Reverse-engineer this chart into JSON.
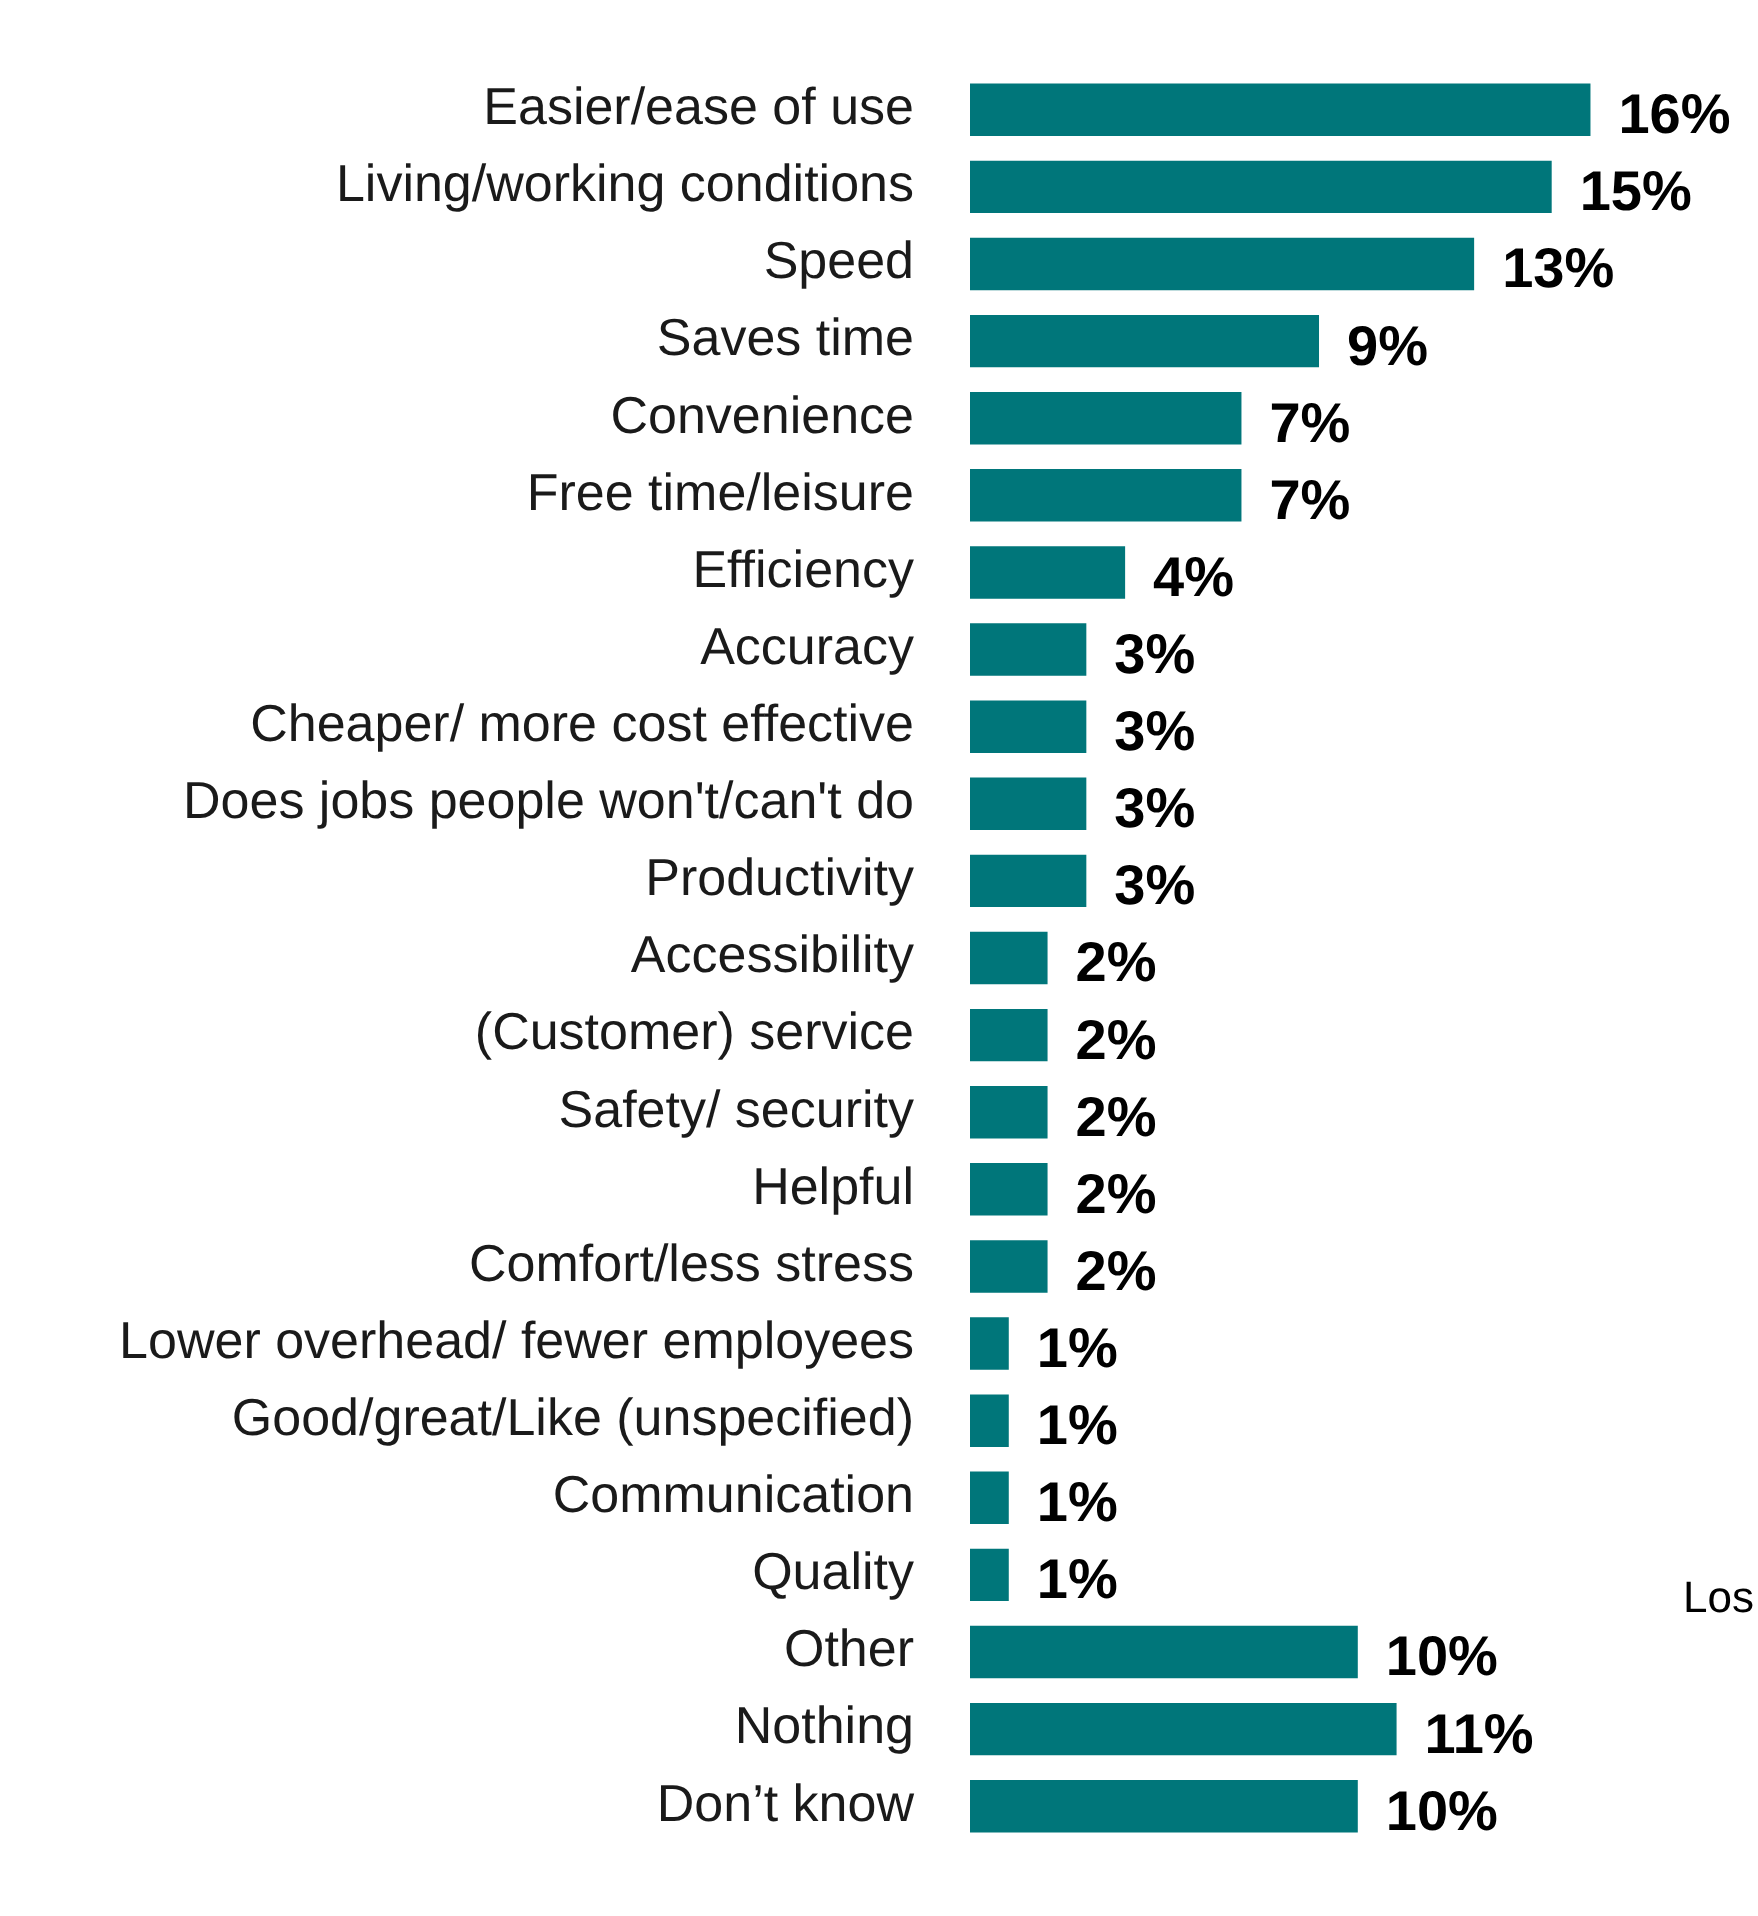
{
  "chart_data": {
    "type": "bar",
    "orientation": "horizontal",
    "categories": [
      "Easier/ease of use",
      "Living/working conditions",
      "Speed",
      "Saves time",
      "Convenience",
      "Free time/leisure",
      "Efficiency",
      "Accuracy",
      "Cheaper/ more cost effective",
      "Does jobs people won't/can't do",
      "Productivity",
      "Accessibility",
      "(Customer) service",
      "Safety/ security",
      "Helpful",
      "Comfort/less stress",
      "Lower overhead/ fewer employees",
      "Good/great/Like (unspecified)",
      "Communication",
      "Quality",
      "Other",
      "Nothing",
      "Don’t know"
    ],
    "values": [
      16,
      15,
      13,
      9,
      7,
      7,
      4,
      3,
      3,
      3,
      3,
      2,
      2,
      2,
      2,
      2,
      1,
      1,
      1,
      1,
      10,
      11,
      10
    ],
    "value_labels": [
      "16%",
      "15%",
      "13%",
      "9%",
      "7%",
      "7%",
      "4%",
      "3%",
      "3%",
      "3%",
      "3%",
      "2%",
      "2%",
      "2%",
      "2%",
      "2%",
      "1%",
      "1%",
      "1%",
      "1%",
      "10%",
      "11%",
      "10%"
    ],
    "color": "#00767a",
    "annotations": [
      "Los"
    ]
  }
}
